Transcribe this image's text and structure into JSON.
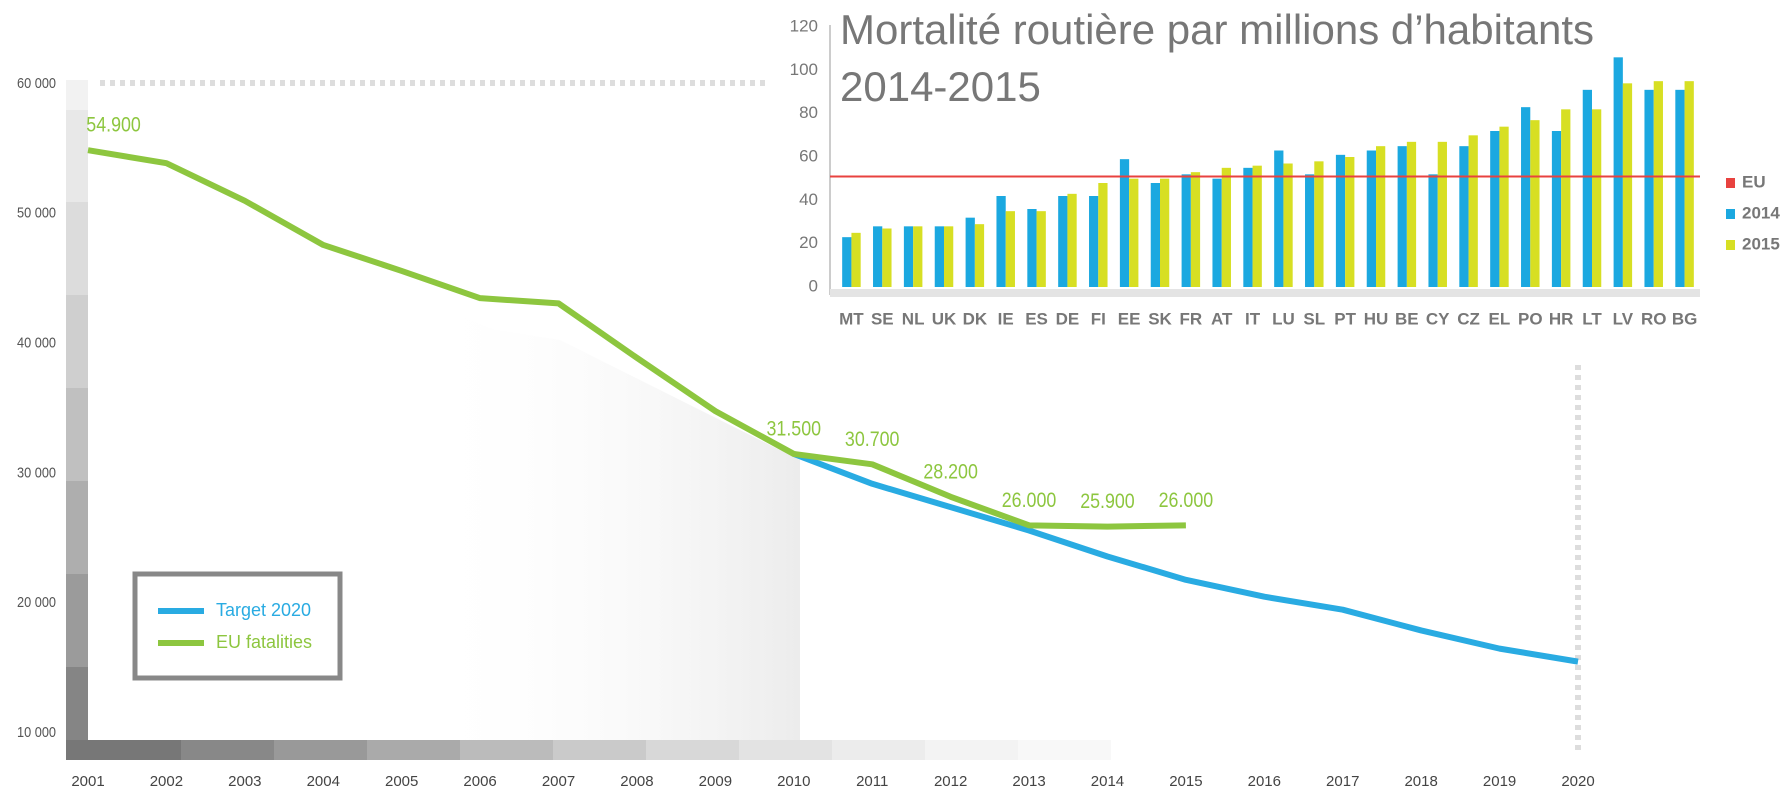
{
  "chart_data": [
    {
      "type": "line",
      "x": [
        2001,
        2002,
        2003,
        2004,
        2005,
        2006,
        2007,
        2008,
        2009,
        2010,
        2011,
        2012,
        2013,
        2014,
        2015,
        2016,
        2017,
        2018,
        2019,
        2020
      ],
      "xlim": [
        2001,
        2020
      ],
      "xticks": [
        2001,
        2002,
        2003,
        2004,
        2005,
        2006,
        2007,
        2008,
        2009,
        2010,
        2011,
        2012,
        2013,
        2014,
        2015,
        2016,
        2017,
        2018,
        2019,
        2020
      ],
      "ylim": [
        10000,
        60000
      ],
      "yticks": [
        {
          "value": 10000,
          "label": "10 000"
        },
        {
          "value": 20000,
          "label": "20 000"
        },
        {
          "value": 30000,
          "label": "30 000"
        },
        {
          "value": 40000,
          "label": "40 000"
        },
        {
          "value": 50000,
          "label": "50 000"
        },
        {
          "value": 60000,
          "label": "60 000"
        }
      ],
      "legend": "lower left",
      "series": [
        {
          "name": "Target 2020",
          "color": "#29abe2",
          "values": [
            null,
            null,
            null,
            null,
            null,
            null,
            null,
            null,
            null,
            31500,
            29200,
            27400,
            25600,
            23600,
            21800,
            20500,
            19500,
            17900,
            16500,
            15500
          ]
        },
        {
          "name": "EU fatalities",
          "color": "#8dc63f",
          "values": [
            54900,
            53900,
            51000,
            47600,
            45600,
            43500,
            43100,
            38900,
            34800,
            31500,
            30700,
            28200,
            26000,
            25900,
            26000,
            null,
            null,
            null,
            null,
            null
          ],
          "value_labels": [
            "54.900",
            null,
            null,
            null,
            null,
            null,
            null,
            null,
            null,
            "31.500",
            "30.700",
            "28.200",
            "26.000",
            "25.900",
            "26.000",
            null,
            null,
            null,
            null,
            null
          ]
        }
      ]
    },
    {
      "type": "bar",
      "title": [
        "Mortalité routière par millions d’habitants",
        "2014-2015"
      ],
      "categories": [
        "MT",
        "SE",
        "NL",
        "UK",
        "DK",
        "IE",
        "ES",
        "DE",
        "FI",
        "EE",
        "SK",
        "FR",
        "AT",
        "IT",
        "LU",
        "SL",
        "PT",
        "HU",
        "BE",
        "CY",
        "CZ",
        "EL",
        "PO",
        "HR",
        "LT",
        "LV",
        "RO",
        "BG"
      ],
      "ylim": [
        0,
        120
      ],
      "yticks": [
        0,
        20,
        40,
        60,
        80,
        100,
        120
      ],
      "legend": "right",
      "reference": {
        "name": "EU",
        "color": "#e8423f",
        "value": 51
      },
      "series": [
        {
          "name": "2014",
          "color": "#1ba8e0",
          "values": [
            23,
            28,
            28,
            28,
            32,
            42,
            36,
            42,
            42,
            59,
            48,
            52,
            50,
            55,
            63,
            52,
            61,
            63,
            65,
            52,
            65,
            72,
            83,
            72,
            91,
            106,
            91,
            91
          ]
        },
        {
          "name": "2015",
          "color": "#d7df23",
          "values": [
            25,
            27,
            28,
            28,
            29,
            35,
            35,
            43,
            48,
            50,
            50,
            53,
            55,
            56,
            57,
            58,
            60,
            65,
            67,
            67,
            70,
            74,
            77,
            82,
            82,
            94,
            95,
            95
          ]
        }
      ]
    }
  ]
}
